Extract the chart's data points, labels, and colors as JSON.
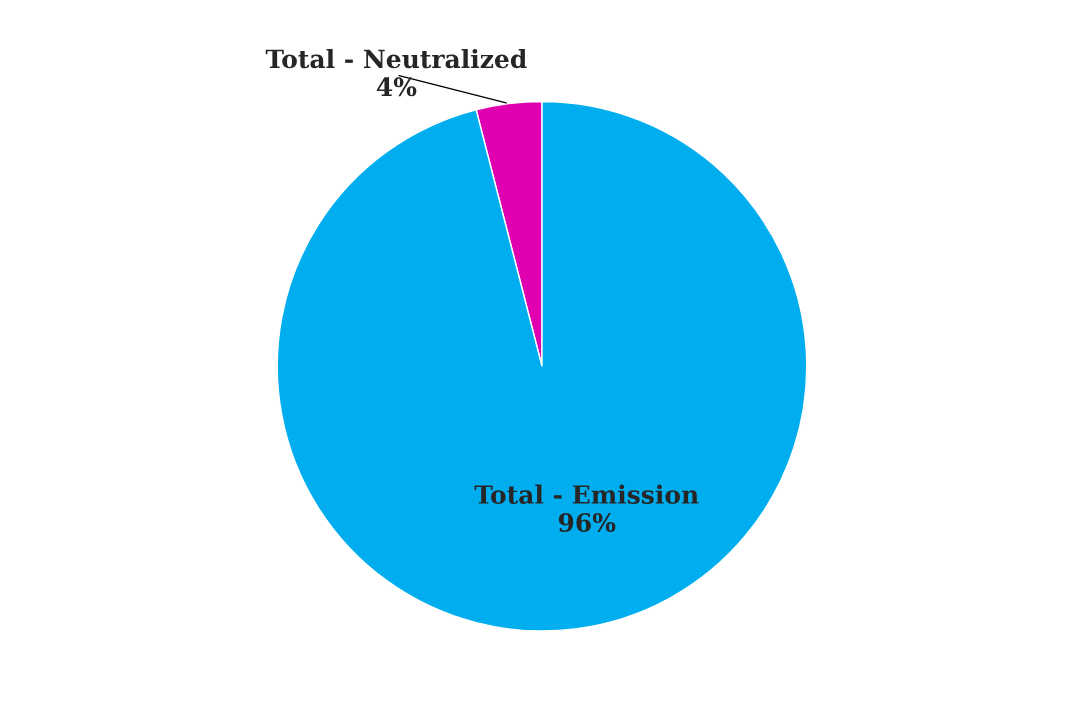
{
  "chart_data": {
    "type": "pie",
    "categories": [
      "Total - Neutralized",
      "Total - Emission"
    ],
    "values": [
      4,
      96
    ],
    "colors": [
      "#e000b0",
      "#00aeef"
    ],
    "value_labels": [
      "4%",
      "96%"
    ],
    "legend": false
  }
}
